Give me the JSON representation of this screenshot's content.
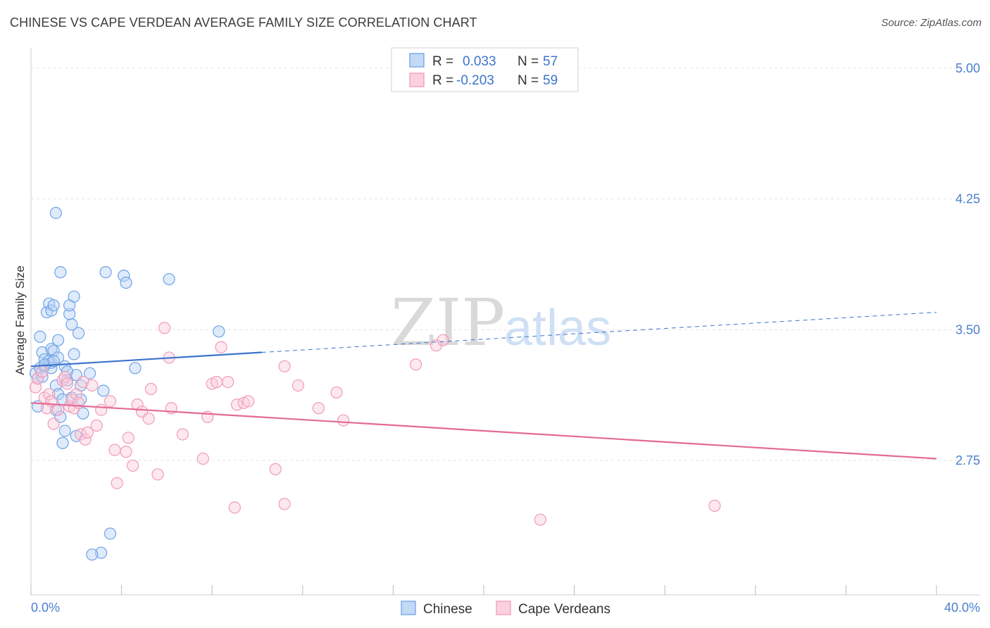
{
  "header": {
    "title": "CHINESE VS CAPE VERDEAN AVERAGE FAMILY SIZE CORRELATION CHART",
    "source": "Source: ZipAtlas.com"
  },
  "watermark": {
    "zip": "ZIP",
    "atlas": "atlas"
  },
  "legend": {
    "rows": [
      {
        "r_label": "R =",
        "r_value": "0.033",
        "n_label": "N =",
        "n_value": "57"
      },
      {
        "r_label": "R =",
        "r_value": "-0.203",
        "n_label": "N =",
        "n_value": "59"
      }
    ]
  },
  "chart_data": {
    "type": "scatter",
    "title": "CHINESE VS CAPE VERDEAN AVERAGE FAMILY SIZE CORRELATION CHART",
    "xlabel": "",
    "ylabel": "Average Family Size",
    "xlim": [
      0,
      40
    ],
    "ylim": [
      2.0,
      5.1
    ],
    "x_tick_labels": [
      "0.0%",
      "40.0%"
    ],
    "y_ticks": [
      2.75,
      3.5,
      4.25,
      5.0
    ],
    "y_tick_labels": [
      "2.75",
      "3.50",
      "4.25",
      "5.00"
    ],
    "grid": true,
    "legend_position": "top-center",
    "colors": {
      "chinese": "#6fa3e6",
      "cape_verdean": "#f09bb8",
      "chinese_line": "#3b74cc",
      "cape_line": "#e36a95"
    },
    "series": [
      {
        "name": "Chinese",
        "R": 0.033,
        "N": 57,
        "trend": {
          "x0": 0,
          "y0": 3.29,
          "x1": 10.2,
          "y1": 3.37,
          "dash_x1": 40,
          "dash_y1": 3.6
        },
        "points": [
          [
            0.2,
            3.25
          ],
          [
            0.3,
            3.22
          ],
          [
            0.4,
            3.28
          ],
          [
            0.3,
            3.06
          ],
          [
            0.5,
            3.37
          ],
          [
            0.4,
            3.46
          ],
          [
            0.5,
            3.23
          ],
          [
            0.6,
            3.29
          ],
          [
            0.6,
            3.33
          ],
          [
            0.7,
            3.6
          ],
          [
            0.8,
            3.65
          ],
          [
            0.8,
            3.32
          ],
          [
            0.9,
            3.39
          ],
          [
            0.9,
            3.31
          ],
          [
            0.9,
            3.61
          ],
          [
            1.0,
            3.38
          ],
          [
            0.9,
            3.28
          ],
          [
            1.0,
            3.64
          ],
          [
            1.1,
            3.18
          ],
          [
            1.1,
            3.04
          ],
          [
            1.2,
            3.44
          ],
          [
            1.2,
            3.13
          ],
          [
            1.2,
            3.34
          ],
          [
            1.3,
            3.0
          ],
          [
            1.1,
            4.17
          ],
          [
            1.3,
            3.83
          ],
          [
            1.4,
            3.1
          ],
          [
            1.5,
            2.92
          ],
          [
            1.4,
            2.85
          ],
          [
            1.5,
            3.29
          ],
          [
            1.6,
            3.26
          ],
          [
            1.6,
            3.21
          ],
          [
            1.7,
            3.59
          ],
          [
            1.7,
            3.64
          ],
          [
            1.8,
            3.53
          ],
          [
            1.8,
            3.11
          ],
          [
            1.9,
            3.36
          ],
          [
            1.9,
            3.69
          ],
          [
            2.0,
            3.24
          ],
          [
            2.0,
            2.89
          ],
          [
            2.1,
            3.48
          ],
          [
            2.2,
            3.18
          ],
          [
            2.2,
            3.1
          ],
          [
            2.3,
            3.02
          ],
          [
            2.6,
            3.25
          ],
          [
            3.1,
            2.22
          ],
          [
            3.2,
            3.15
          ],
          [
            3.3,
            3.83
          ],
          [
            3.5,
            2.33
          ],
          [
            4.1,
            3.81
          ],
          [
            4.2,
            3.77
          ],
          [
            4.6,
            3.28
          ],
          [
            6.1,
            3.79
          ],
          [
            8.3,
            3.49
          ],
          [
            2.7,
            2.21
          ],
          [
            0.6,
            3.3
          ],
          [
            1.0,
            3.32
          ]
        ]
      },
      {
        "name": "Cape Verdeans",
        "R": -0.203,
        "N": 59,
        "trend": {
          "x0": 0,
          "y0": 3.08,
          "x1": 40,
          "y1": 2.76
        },
        "points": [
          [
            0.2,
            3.17
          ],
          [
            0.3,
            3.22
          ],
          [
            0.5,
            3.26
          ],
          [
            0.6,
            3.11
          ],
          [
            0.7,
            3.05
          ],
          [
            0.8,
            3.13
          ],
          [
            0.9,
            3.09
          ],
          [
            1.0,
            2.96
          ],
          [
            1.2,
            3.04
          ],
          [
            1.4,
            3.21
          ],
          [
            1.5,
            3.23
          ],
          [
            1.6,
            3.19
          ],
          [
            1.7,
            3.06
          ],
          [
            1.8,
            3.1
          ],
          [
            1.9,
            3.05
          ],
          [
            2.0,
            3.13
          ],
          [
            2.1,
            3.08
          ],
          [
            2.2,
            2.9
          ],
          [
            2.3,
            3.2
          ],
          [
            2.4,
            2.87
          ],
          [
            2.5,
            2.91
          ],
          [
            2.7,
            3.18
          ],
          [
            2.9,
            2.95
          ],
          [
            3.1,
            3.04
          ],
          [
            3.5,
            3.09
          ],
          [
            3.7,
            2.81
          ],
          [
            3.8,
            2.62
          ],
          [
            4.2,
            2.8
          ],
          [
            4.3,
            2.88
          ],
          [
            4.5,
            2.72
          ],
          [
            4.7,
            3.07
          ],
          [
            4.9,
            3.03
          ],
          [
            5.2,
            2.99
          ],
          [
            5.3,
            3.16
          ],
          [
            5.6,
            2.67
          ],
          [
            5.9,
            3.51
          ],
          [
            6.1,
            3.34
          ],
          [
            6.2,
            3.05
          ],
          [
            6.7,
            2.9
          ],
          [
            7.6,
            2.76
          ],
          [
            7.8,
            3.0
          ],
          [
            8.0,
            3.19
          ],
          [
            8.2,
            3.2
          ],
          [
            8.4,
            3.4
          ],
          [
            8.7,
            3.2
          ],
          [
            9.0,
            2.48
          ],
          [
            9.1,
            3.07
          ],
          [
            9.4,
            3.08
          ],
          [
            9.6,
            3.09
          ],
          [
            10.8,
            2.7
          ],
          [
            11.2,
            3.29
          ],
          [
            11.2,
            2.5
          ],
          [
            11.8,
            3.18
          ],
          [
            12.7,
            3.05
          ],
          [
            13.5,
            3.14
          ],
          [
            13.8,
            2.98
          ],
          [
            17.0,
            3.3
          ],
          [
            17.9,
            3.41
          ],
          [
            18.2,
            3.44
          ]
        ]
      },
      {
        "name": "Cape Verdeans (far)",
        "points": [
          [
            22.5,
            2.41
          ],
          [
            30.2,
            2.49
          ]
        ]
      }
    ],
    "bottom_legend": [
      "Chinese",
      "Cape Verdeans"
    ]
  }
}
